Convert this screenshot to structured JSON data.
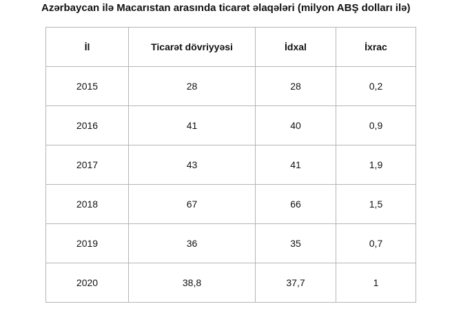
{
  "title": "Azərbaycan ilə Macarıstan arasında ticarət əlaqələri (milyon ABŞ dolları ilə)",
  "table": {
    "headers": [
      "İl",
      "Ticarət dövriyyəsi",
      "İdxal",
      "İxrac"
    ],
    "rows": [
      [
        "2015",
        "28",
        "28",
        "0,2"
      ],
      [
        "2016",
        "41",
        "40",
        "0,9"
      ],
      [
        "2017",
        "43",
        "41",
        "1,9"
      ],
      [
        "2018",
        "67",
        "66",
        "1,5"
      ],
      [
        "2019",
        "36",
        "35",
        "0,7"
      ],
      [
        "2020",
        "38,8",
        "37,7",
        "1"
      ]
    ]
  }
}
